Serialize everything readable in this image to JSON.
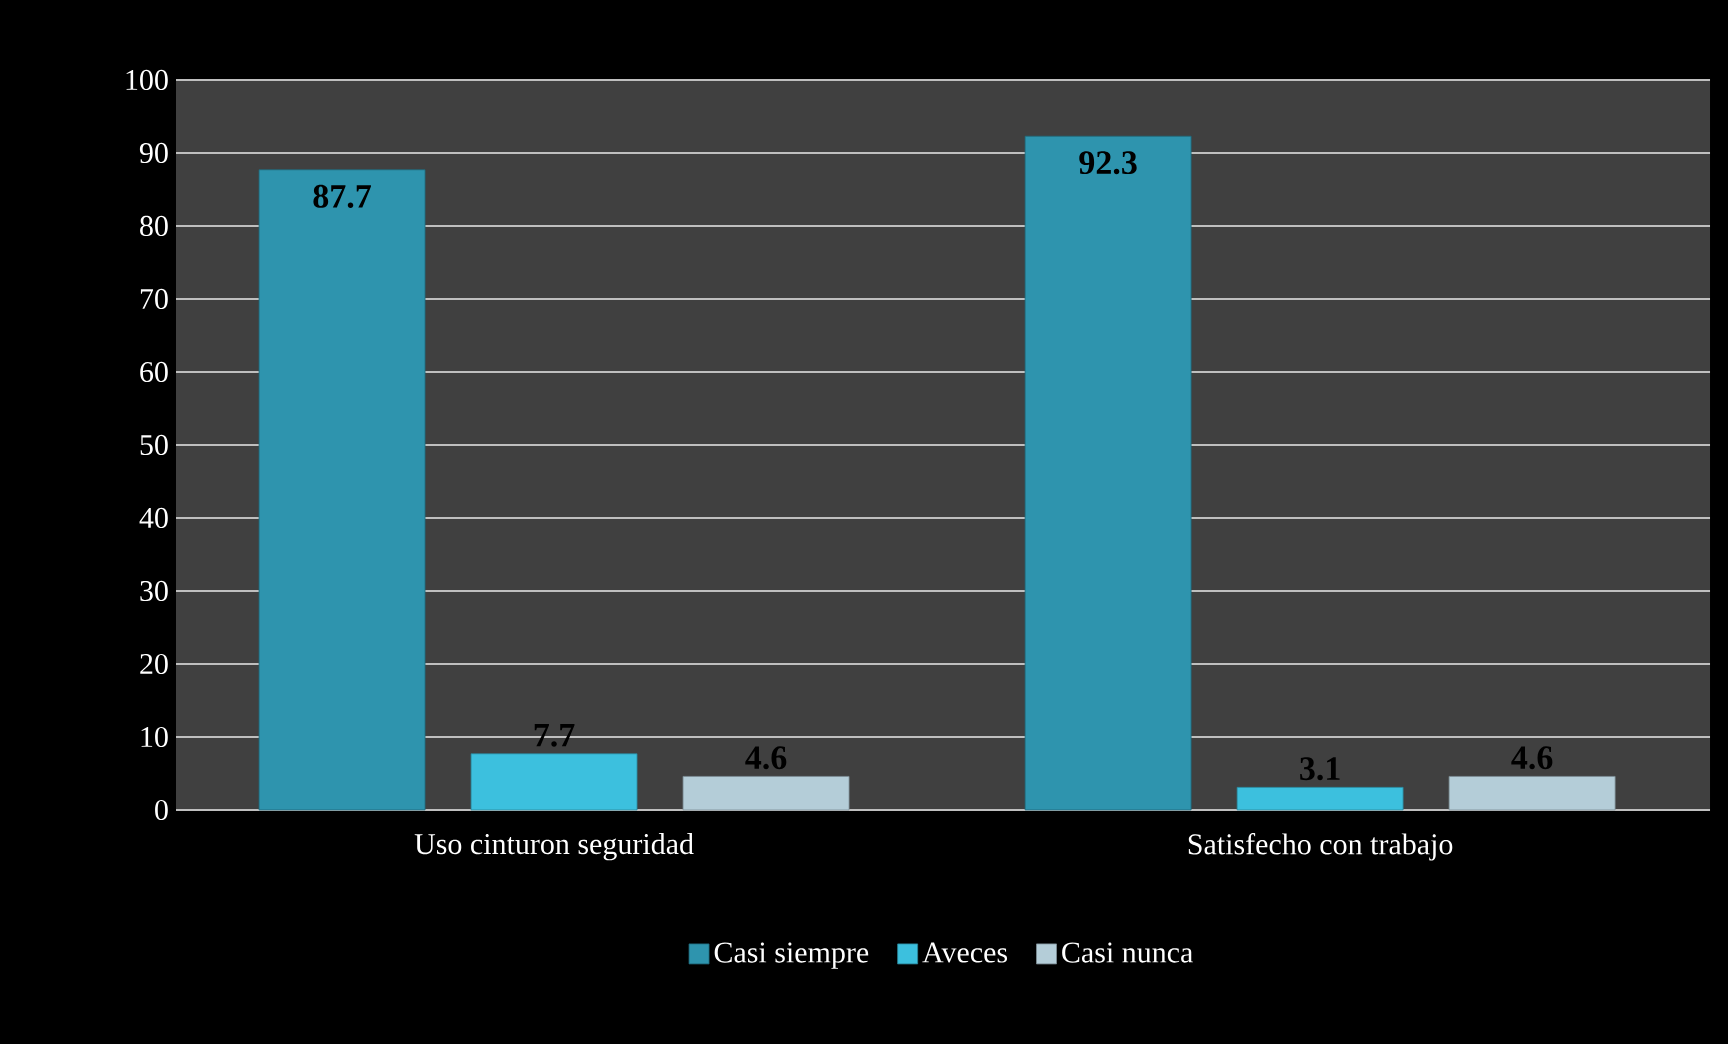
{
  "chart_data": {
    "type": "bar",
    "categories": [
      "Uso cinturon seguridad",
      "Satisfecho con trabajo"
    ],
    "series": [
      {
        "name": "Casi siempre",
        "color": "#2e94ae",
        "values": [
          87.7,
          92.3
        ]
      },
      {
        "name": "Aveces",
        "color": "#3cc0de",
        "values": [
          7.7,
          3.1
        ]
      },
      {
        "name": "Casi nunca",
        "color": "#b4cdd8",
        "values": [
          4.6,
          4.6
        ]
      }
    ],
    "ylim": [
      0,
      100
    ],
    "yticks": [
      0,
      10,
      20,
      30,
      40,
      50,
      60,
      70,
      80,
      90,
      100
    ],
    "grid": "y",
    "legend": "bottom",
    "data_labels": true
  }
}
